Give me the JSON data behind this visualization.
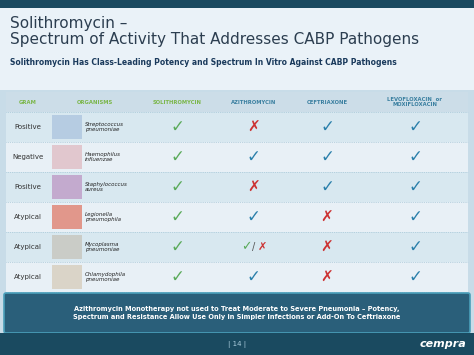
{
  "title_line1": "Solithromycin –",
  "title_line2": "Spectrum of Activity That Addresses CABP Pathogens",
  "subtitle": "Solithromycin Has Class-Leading Potency and Spectrum In Vitro Against CABP Pathogens",
  "col_headers": [
    "GRAM",
    "ORGANISMS",
    "SOLITHROMYCIN",
    "AZITHROMYCIN",
    "CEFTRIAXONE",
    "LEVOFLOXACIN  or\nMOXIFLOXACIN"
  ],
  "rows": [
    [
      "Positive",
      "Streptococcus\npneumoniae",
      "✓",
      "✗",
      "✓",
      "✓"
    ],
    [
      "Negative",
      "Haemophilus\ninfluenzae",
      "✓",
      "✓",
      "✓",
      "✓"
    ],
    [
      "Positive",
      "Staphylococcus\naureus",
      "✓",
      "✗",
      "✓",
      "✓"
    ],
    [
      "Atypical",
      "Legionella\npneumophila",
      "✓",
      "✓",
      "✗",
      "✓"
    ],
    [
      "Atypical",
      "Mycoplasma\npneumoniae",
      "✓",
      "✓ / ✗",
      "✗",
      "✓"
    ],
    [
      "Atypical",
      "Chlamydophila\npneumoniae",
      "✓",
      "✓",
      "✗",
      "✓"
    ]
  ],
  "footer_text": "Azithromycin Monotherapy not used to Treat Moderate to Severe Pneumonia – Potency,\nSpectrum and Resistance Allow Use Only in Simpler Infections or Add-On To Ceftriaxone",
  "slide_bg": "#c8dce8",
  "title_bg": "#dce8f2",
  "table_bg": "#e8f0f6",
  "title_color": "#2c3e50",
  "subtitle_color": "#1a3a5c",
  "header_gram_color": "#7ab648",
  "header_org_color": "#7ab648",
  "header_soli_color": "#7ab648",
  "header_other_color": "#3a7fa0",
  "check_green": "#5aaa5a",
  "check_blue": "#2a7faa",
  "cross_red": "#cc3333",
  "row_bg_alt": "#d8e8f0",
  "row_bg_main": "#e8f0f6",
  "header_row_bg": "#ccdde8",
  "footer_bg": "#2a5f7a",
  "footer_border": "#4a9fba",
  "footer_text_color": "#ffffff",
  "bottom_bar_color": "#1a4a60",
  "page_num": "14",
  "logo_text": "cempra",
  "top_bar_color": "#1a4a60"
}
